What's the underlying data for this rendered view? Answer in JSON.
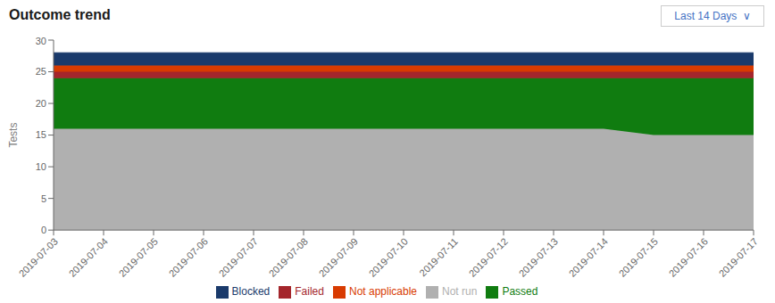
{
  "chart_data": {
    "type": "area",
    "stacked": true,
    "title": "Outcome trend",
    "y_label": "Tests",
    "annotations": [
      "Last 14 Days  ∨"
    ],
    "categories": [
      "2019-07-03",
      "2019-07-04",
      "2019-07-05",
      "2019-07-06",
      "2019-07-07",
      "2019-07-08",
      "2019-07-09",
      "2019-07-10",
      "2019-07-11",
      "2019-07-12",
      "2019-07-13",
      "2019-07-14",
      "2019-07-15",
      "2019-07-16",
      "2019-07-17"
    ],
    "series": [
      {
        "name": "Not run",
        "color": "#b0b0b0",
        "values": [
          16,
          16,
          16,
          16,
          16,
          16,
          16,
          16,
          16,
          16,
          16,
          16,
          15,
          15,
          15
        ]
      },
      {
        "name": "Passed",
        "color": "#107c10",
        "values": [
          8,
          8,
          8,
          8,
          8,
          8,
          8,
          8,
          8,
          8,
          8,
          8,
          9,
          9,
          9
        ]
      },
      {
        "name": "Failed",
        "color": "#a4262c",
        "values": [
          1,
          1,
          1,
          1,
          1,
          1,
          1,
          1,
          1,
          1,
          1,
          1,
          1,
          1,
          1
        ]
      },
      {
        "name": "Not applicable",
        "color": "#d83b01",
        "values": [
          1,
          1,
          1,
          1,
          1,
          1,
          1,
          1,
          1,
          1,
          1,
          1,
          1,
          1,
          1
        ]
      },
      {
        "name": "Blocked",
        "color": "#1a3a6b",
        "values": [
          2,
          2,
          2,
          2,
          2,
          2,
          2,
          2,
          2,
          2,
          2,
          2,
          2,
          2,
          2
        ]
      }
    ],
    "ylim": [
      0,
      30
    ],
    "yticks": [
      0,
      5,
      10,
      15,
      20,
      25,
      30
    ],
    "grid": false,
    "legend": "bottom"
  }
}
